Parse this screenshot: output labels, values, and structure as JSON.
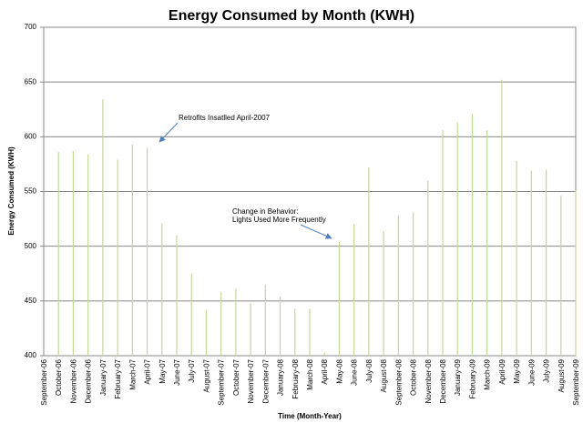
{
  "chart_data": {
    "type": "bar",
    "title": "Energy Consumed by Month (KWH)",
    "x_label": "Time (Month-Year)",
    "y_label": "Energy Consumed (KWH)",
    "categories": [
      "September-06",
      "October-06",
      "November-06",
      "December-06",
      "January-07",
      "February-07",
      "March-07",
      "April-07",
      "May-07",
      "June-07",
      "July-07",
      "August-07",
      "September-07",
      "October-07",
      "November-07",
      "December-07",
      "January-08",
      "February-08",
      "March-08",
      "April-08",
      "May-08",
      "June-08",
      "July-08",
      "August-08",
      "September-08",
      "October-08",
      "November-08",
      "December-08",
      "January-09",
      "February-09",
      "March-09",
      "April-09",
      "May-09",
      "June-09",
      "July-09",
      "August-09",
      "September-09"
    ],
    "values": [
      null,
      586,
      587,
      584,
      634,
      579,
      593,
      590,
      521,
      510,
      475,
      442,
      458,
      461,
      448,
      465,
      454,
      443,
      443,
      403,
      504,
      520,
      572,
      514,
      528,
      531,
      560,
      606,
      613,
      621,
      606,
      652,
      578,
      569,
      570,
      546,
      551
    ],
    "color": "#c4d79b",
    "ylim": [
      400,
      700
    ],
    "yticks": [
      400,
      450,
      500,
      550,
      600,
      650,
      700
    ],
    "grid": true,
    "annotations": [
      {
        "lines": [
          "Retrofits Insatlled April-2007"
        ]
      },
      {
        "lines": [
          "Change in Behavior:",
          "Lights Used More Frequently"
        ]
      }
    ]
  }
}
